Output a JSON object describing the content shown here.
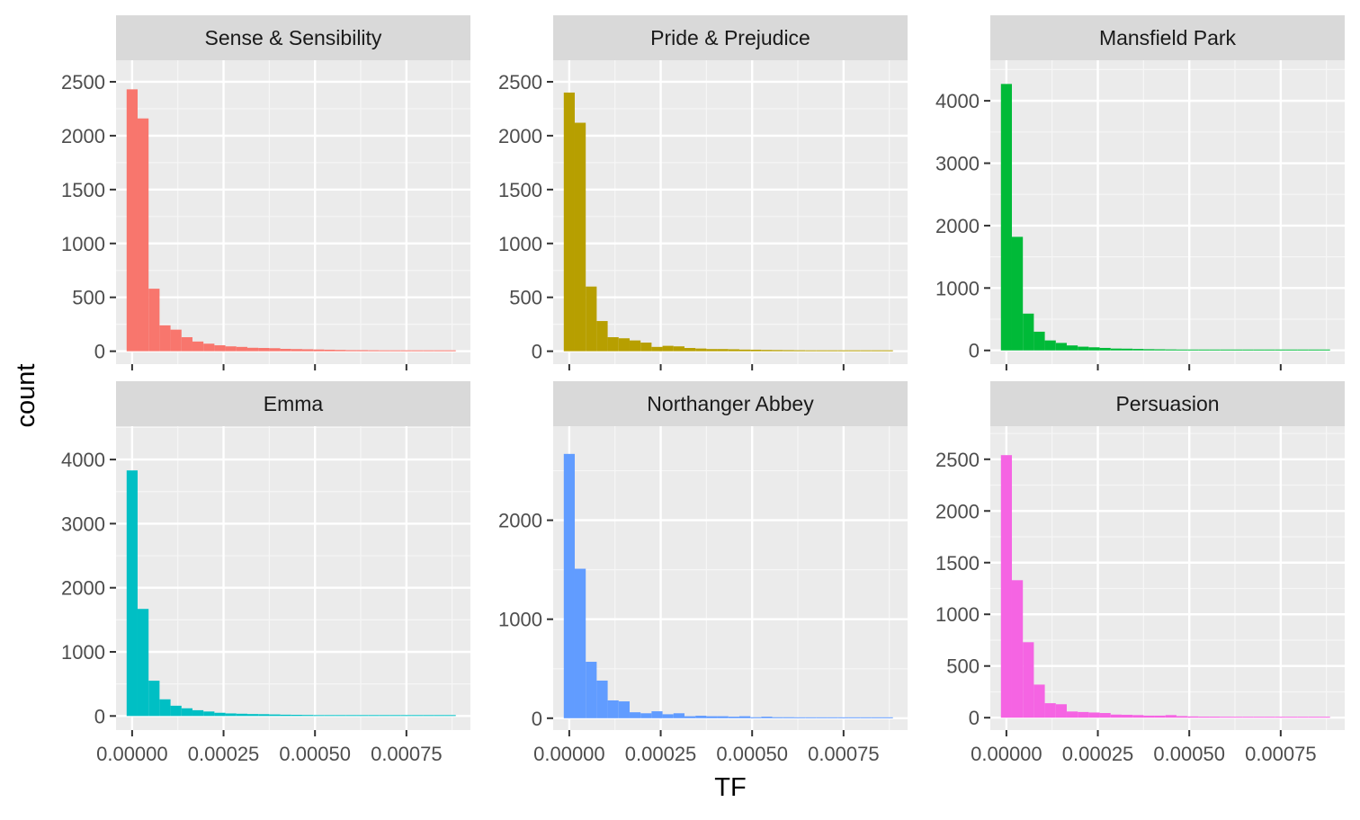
{
  "chart_data": {
    "type": "bar",
    "xlabel": "TF",
    "ylabel": "count",
    "x_ticks": [
      "0.00000",
      "0.00025",
      "0.00050",
      "0.00075"
    ],
    "x_tick_values": [
      0,
      0.00025,
      0.0005,
      0.00075
    ],
    "xlim": [
      -4.4e-05,
      0.000925
    ],
    "bin_width": 3e-05,
    "bin_start": -1.5e-05,
    "panels": [
      {
        "title": "Sense & Sensibility",
        "color": "#F8766D",
        "ylim": [
          -120,
          2700
        ],
        "y_ticks": [
          0,
          500,
          1000,
          1500,
          2000,
          2500
        ],
        "counts": [
          2430,
          2160,
          580,
          240,
          200,
          130,
          90,
          70,
          55,
          45,
          40,
          32,
          30,
          28,
          22,
          20,
          18,
          16,
          14,
          12,
          10,
          10,
          9,
          8,
          8,
          7,
          6,
          6,
          5,
          5
        ]
      },
      {
        "title": "Pride & Prejudice",
        "color": "#B79F00",
        "ylim": [
          -120,
          2700
        ],
        "y_ticks": [
          0,
          500,
          1000,
          1500,
          2000,
          2500
        ],
        "counts": [
          2400,
          2120,
          600,
          280,
          130,
          120,
          100,
          80,
          40,
          50,
          45,
          30,
          25,
          20,
          20,
          18,
          15,
          14,
          12,
          11,
          10,
          9,
          8,
          8,
          7,
          6,
          6,
          5,
          5,
          5
        ]
      },
      {
        "title": "Mansfield Park",
        "color": "#00BA38",
        "ylim": [
          -220,
          4650
        ],
        "y_ticks": [
          0,
          1000,
          2000,
          3000,
          4000
        ],
        "counts": [
          4270,
          1820,
          590,
          300,
          160,
          120,
          80,
          60,
          50,
          40,
          30,
          28,
          24,
          20,
          18,
          16,
          14,
          12,
          11,
          10,
          9,
          8,
          8,
          7,
          6,
          6,
          5,
          5,
          4,
          4
        ]
      },
      {
        "title": "Emma",
        "color": "#00BFC4",
        "ylim": [
          -220,
          4520
        ],
        "y_ticks": [
          0,
          1000,
          2000,
          3000,
          4000
        ],
        "counts": [
          3830,
          1670,
          550,
          260,
          160,
          120,
          90,
          70,
          50,
          40,
          35,
          30,
          28,
          24,
          20,
          18,
          16,
          14,
          12,
          11,
          10,
          9,
          8,
          8,
          7,
          6,
          6,
          5,
          5,
          4
        ]
      },
      {
        "title": "Northanger Abbey",
        "color": "#619CFF",
        "ylim": [
          -120,
          2950
        ],
        "y_ticks": [
          0,
          1000,
          2000
        ],
        "counts": [
          2670,
          1510,
          570,
          380,
          180,
          170,
          60,
          50,
          70,
          40,
          50,
          20,
          25,
          20,
          20,
          15,
          20,
          10,
          15,
          10,
          10,
          8,
          8,
          6,
          6,
          5,
          5,
          5,
          4,
          4
        ]
      },
      {
        "title": "Persuasion",
        "color": "#F564E3",
        "ylim": [
          -120,
          2820
        ],
        "y_ticks": [
          0,
          500,
          1000,
          1500,
          2000,
          2500
        ],
        "counts": [
          2540,
          1330,
          730,
          320,
          140,
          130,
          60,
          55,
          50,
          45,
          30,
          28,
          25,
          20,
          20,
          25,
          15,
          12,
          10,
          10,
          9,
          8,
          7,
          7,
          6,
          5,
          5,
          5,
          4,
          4
        ]
      }
    ]
  }
}
